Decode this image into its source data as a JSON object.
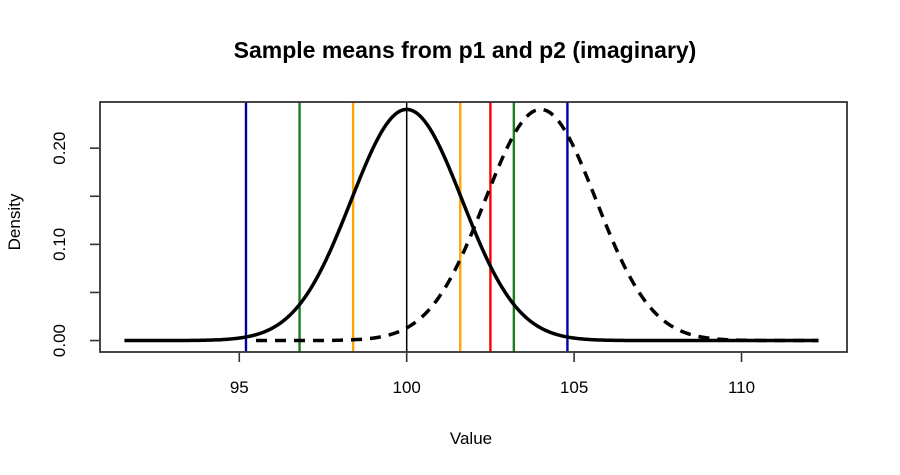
{
  "chart_data": {
    "type": "line",
    "title": "Sample means from p1 and p2 (imaginary)",
    "xlabel": "Value",
    "ylabel": "Density",
    "xlim": [
      90.84,
      113.15
    ],
    "ylim": [
      -0.0119,
      0.248
    ],
    "x_ticks": [
      95,
      100,
      105,
      110
    ],
    "y_ticks": [
      0,
      0.05,
      0.1,
      0.15,
      0.2
    ],
    "y_labeled_ticks": [
      0,
      0.1,
      0.2
    ],
    "y_tick_labels": [
      "0.00",
      "0.10",
      "0.20"
    ],
    "grid": false,
    "legend": false,
    "frame_color": "#333333",
    "series": [
      {
        "name": "p1",
        "distribution": "normal",
        "mean": 100,
        "sd": 1.66,
        "peak_density": 0.24,
        "line_style": "solid",
        "color": "#000000",
        "x_range": [
          91.57,
          112.35
        ]
      },
      {
        "name": "p2",
        "distribution": "normal",
        "mean": 104,
        "sd": 1.66,
        "peak_density": 0.24,
        "line_style": "dashed",
        "color": "#000000",
        "x_range": [
          95.5,
          112.35
        ]
      }
    ],
    "vlines": [
      {
        "x": 95.2,
        "color": "#0000A0"
      },
      {
        "x": 96.8,
        "color": "#1E7D1E"
      },
      {
        "x": 98.4,
        "color": "#FFA500"
      },
      {
        "x": 100,
        "color": "#000000"
      },
      {
        "x": 101.6,
        "color": "#FFA500"
      },
      {
        "x": 102.5,
        "color": "#FF0000"
      },
      {
        "x": 103.2,
        "color": "#1E7D1E"
      },
      {
        "x": 104.8,
        "color": "#0000A0"
      }
    ]
  }
}
